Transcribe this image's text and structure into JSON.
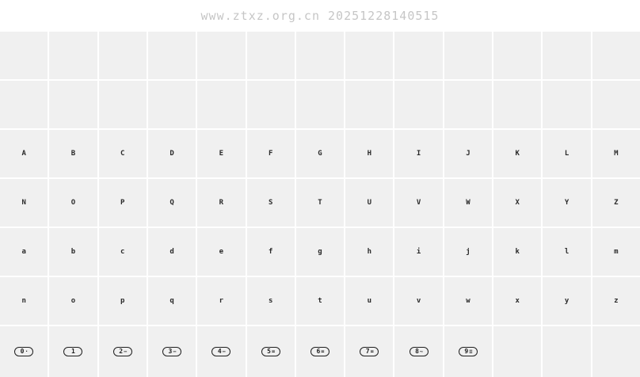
{
  "header": {
    "watermark": "www.ztxz.org.cn 20251228140515"
  },
  "grid": {
    "columns": 13,
    "letter_rows": [
      [
        "",
        "",
        "",
        "",
        "",
        "",
        "",
        "",
        "",
        "",
        "",
        "",
        ""
      ],
      [
        "",
        "",
        "",
        "",
        "",
        "",
        "",
        "",
        "",
        "",
        "",
        "",
        ""
      ],
      [
        "A",
        "B",
        "C",
        "D",
        "E",
        "F",
        "G",
        "H",
        "I",
        "J",
        "K",
        "L",
        "M"
      ],
      [
        "N",
        "O",
        "P",
        "Q",
        "R",
        "S",
        "T",
        "U",
        "V",
        "W",
        "X",
        "Y",
        "Z"
      ],
      [
        "a",
        "b",
        "c",
        "d",
        "e",
        "f",
        "g",
        "h",
        "i",
        "j",
        "k",
        "l",
        "m"
      ],
      [
        "n",
        "o",
        "p",
        "q",
        "r",
        "s",
        "t",
        "u",
        "v",
        "w",
        "x",
        "y",
        "z"
      ]
    ],
    "digit_row": {
      "pills": [
        {
          "digit": "0",
          "marks": "·"
        },
        {
          "digit": "1",
          "marks": ""
        },
        {
          "digit": "2",
          "marks": "−"
        },
        {
          "digit": "3",
          "marks": "−"
        },
        {
          "digit": "4",
          "marks": "−"
        },
        {
          "digit": "5",
          "marks": "="
        },
        {
          "digit": "6",
          "marks": "="
        },
        {
          "digit": "7",
          "marks": "="
        },
        {
          "digit": "8",
          "marks": "~"
        },
        {
          "digit": "9",
          "marks": "≡"
        }
      ],
      "trailing_empty_cells": 3
    }
  },
  "colors": {
    "page_background": "#ffffff",
    "cell_background": "#f0f0f0",
    "grid_line": "#ffffff",
    "glyph": "#2a2a2a",
    "pill_outline": "#1f1f1f",
    "watermark": "#c6c6c6"
  }
}
